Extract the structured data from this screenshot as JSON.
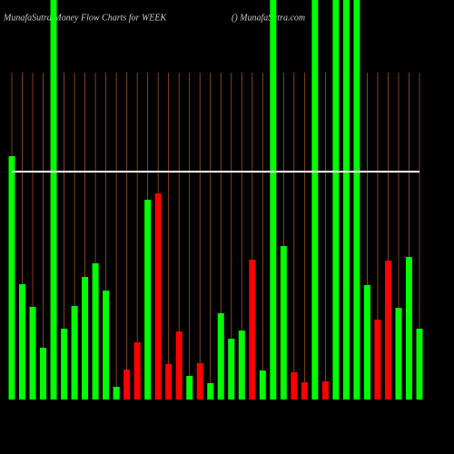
{
  "chart_data": {
    "type": "bar",
    "title": "MunafaSutra  Money Flow  Charts for WEEK",
    "subtitle": "() MunafaSutra.com",
    "values": [
      268,
      127,
      102,
      57,
      440,
      78,
      103,
      135,
      150,
      120,
      14,
      33,
      63,
      220,
      227,
      39,
      75,
      26,
      40,
      18,
      95,
      67,
      76,
      154,
      32,
      440,
      169,
      30,
      19,
      440,
      20,
      440,
      440,
      440,
      126,
      88,
      153,
      101,
      157,
      78
    ],
    "bar_colors": [
      "#00ff00",
      "#00ff00",
      "#00ff00",
      "#00ff00",
      "#00ff00",
      "#00ff00",
      "#00ff00",
      "#00ff00",
      "#00ff00",
      "#00ff00",
      "#00ff00",
      "#ff0000",
      "#ff0000",
      "#00ff00",
      "#ff0000",
      "#ff0000",
      "#ff0000",
      "#00ff00",
      "#ff0000",
      "#00ff00",
      "#00ff00",
      "#00ff00",
      "#00ff00",
      "#ff0000",
      "#00ff00",
      "#00ff00",
      "#00ff00",
      "#ff0000",
      "#ff0000",
      "#00ff00",
      "#ff0000",
      "#00ff00",
      "#00ff00",
      "#00ff00",
      "#00ff00",
      "#ff0000",
      "#ff0000",
      "#00ff00",
      "#00ff00",
      "#00ff00"
    ],
    "line": {
      "color": "#ffffff",
      "values": [
        251,
        251,
        251,
        251,
        251,
        251,
        251,
        251,
        251,
        251,
        251,
        251,
        251,
        251,
        251,
        251,
        251,
        251,
        251,
        251,
        251,
        251,
        251,
        251,
        251,
        251,
        251,
        251,
        251,
        251,
        251,
        251,
        251,
        251,
        251,
        251,
        251,
        251,
        251,
        251
      ]
    },
    "ylim": [
      0,
      440
    ],
    "grid": true,
    "grid_color": "#a0522d"
  }
}
